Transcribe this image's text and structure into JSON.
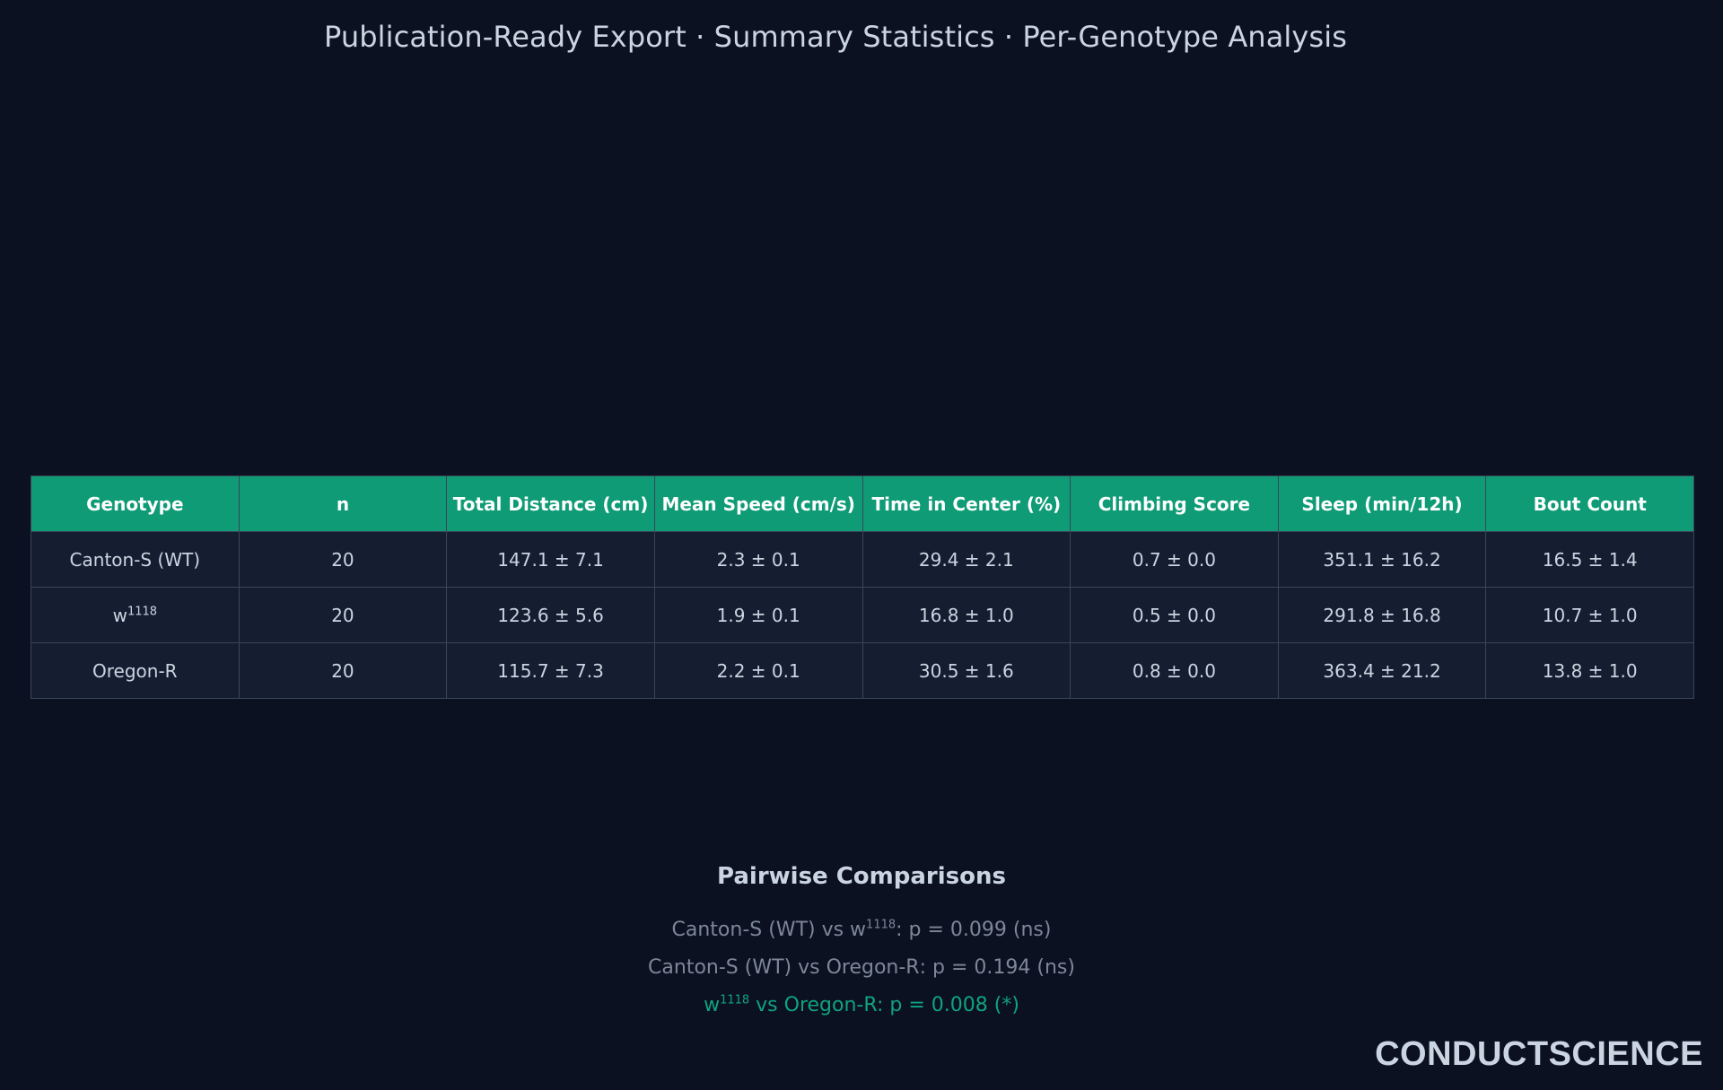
{
  "title": "Publication-Ready Export · Summary Statistics · Per-Genotype Analysis",
  "table": {
    "headers": [
      "Genotype",
      "n",
      "Total Distance (cm)",
      "Mean Speed (cm/s)",
      "Time in Center (%)",
      "Climbing Score",
      "Sleep (min/12h)",
      "Bout Count"
    ],
    "rows": [
      {
        "genotype": "Canton-S (WT)",
        "genotype_sup": "",
        "n": "20",
        "total_distance": "147.1 ± 7.1",
        "mean_speed": "2.3 ± 0.1",
        "time_in_center": "29.4 ± 2.1",
        "climbing_score": "0.7 ± 0.0",
        "sleep": "351.1 ± 16.2",
        "bout_count": "16.5 ± 1.4"
      },
      {
        "genotype": "w",
        "genotype_sup": "1118",
        "n": "20",
        "total_distance": "123.6 ± 5.6",
        "mean_speed": "1.9 ± 0.1",
        "time_in_center": "16.8 ± 1.0",
        "climbing_score": "0.5 ± 0.0",
        "sleep": "291.8 ± 16.8",
        "bout_count": "10.7 ± 1.0"
      },
      {
        "genotype": "Oregon-R",
        "genotype_sup": "",
        "n": "20",
        "total_distance": "115.7 ± 7.3",
        "mean_speed": "2.2 ± 0.1",
        "time_in_center": "30.5 ± 1.6",
        "climbing_score": "0.8 ± 0.0",
        "sleep": "363.4 ± 21.2",
        "bout_count": "13.8 ± 1.0"
      }
    ]
  },
  "pairwise": {
    "heading": "Pairwise Comparisons",
    "comparisons": [
      {
        "a_prefix": "Canton-S (WT) vs w",
        "a_sup": "1118",
        "suffix": ": p = 0.099 (ns)",
        "significant": false
      },
      {
        "a_prefix": "Canton-S (WT) vs Oregon-R",
        "a_sup": "",
        "suffix": ": p = 0.194 (ns)",
        "significant": false
      },
      {
        "a_prefix": "w",
        "a_sup": "1118",
        "suffix": " vs Oregon-R: p = 0.008 (*)",
        "significant": true
      }
    ]
  },
  "logo": {
    "text": "CONDUCTSCIENCE"
  },
  "colors": {
    "background": "#0b1120",
    "header": "#0e9b76",
    "row": "#151e30",
    "significant": "#10a37f",
    "muted": "#7d8798"
  }
}
